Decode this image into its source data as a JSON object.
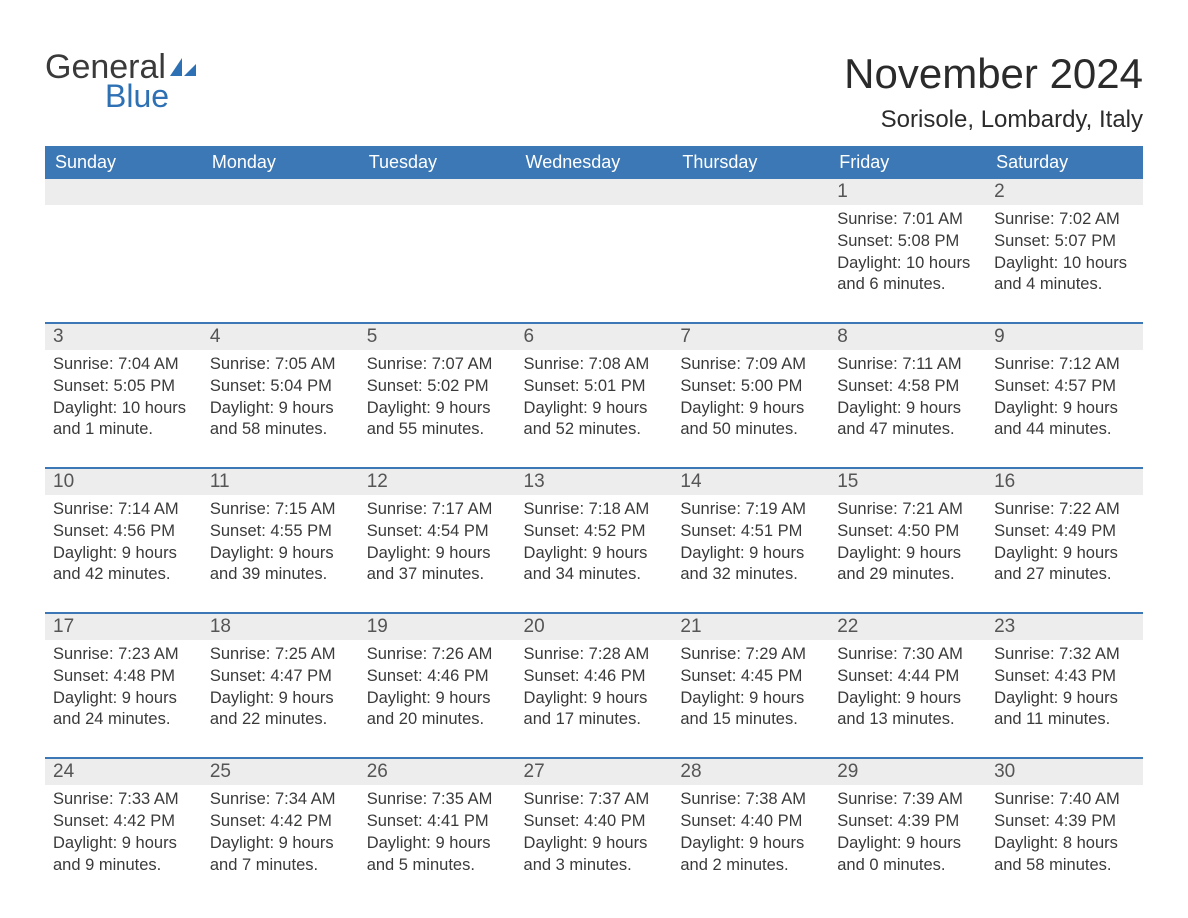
{
  "brand": {
    "general": "General",
    "blue": "Blue",
    "accent": "#2d70b3"
  },
  "title": "November 2024",
  "location": "Sorisole, Lombardy, Italy",
  "colors": {
    "header_bg": "#3b78b5",
    "header_text": "#ffffff",
    "daynum_bg": "#ededed",
    "border": "#3b78b5",
    "text": "#3a3a3a",
    "page_bg": "#ffffff"
  },
  "typography": {
    "title_fontsize": 42,
    "location_fontsize": 24,
    "header_fontsize": 18,
    "daynum_fontsize": 19,
    "body_fontsize": 16.5
  },
  "weekdays": [
    "Sunday",
    "Monday",
    "Tuesday",
    "Wednesday",
    "Thursday",
    "Friday",
    "Saturday"
  ],
  "weeks": [
    [
      null,
      null,
      null,
      null,
      null,
      {
        "n": "1",
        "sunrise": "Sunrise: 7:01 AM",
        "sunset": "Sunset: 5:08 PM",
        "dl1": "Daylight: 10 hours",
        "dl2": "and 6 minutes."
      },
      {
        "n": "2",
        "sunrise": "Sunrise: 7:02 AM",
        "sunset": "Sunset: 5:07 PM",
        "dl1": "Daylight: 10 hours",
        "dl2": "and 4 minutes."
      }
    ],
    [
      {
        "n": "3",
        "sunrise": "Sunrise: 7:04 AM",
        "sunset": "Sunset: 5:05 PM",
        "dl1": "Daylight: 10 hours",
        "dl2": "and 1 minute."
      },
      {
        "n": "4",
        "sunrise": "Sunrise: 7:05 AM",
        "sunset": "Sunset: 5:04 PM",
        "dl1": "Daylight: 9 hours",
        "dl2": "and 58 minutes."
      },
      {
        "n": "5",
        "sunrise": "Sunrise: 7:07 AM",
        "sunset": "Sunset: 5:02 PM",
        "dl1": "Daylight: 9 hours",
        "dl2": "and 55 minutes."
      },
      {
        "n": "6",
        "sunrise": "Sunrise: 7:08 AM",
        "sunset": "Sunset: 5:01 PM",
        "dl1": "Daylight: 9 hours",
        "dl2": "and 52 minutes."
      },
      {
        "n": "7",
        "sunrise": "Sunrise: 7:09 AM",
        "sunset": "Sunset: 5:00 PM",
        "dl1": "Daylight: 9 hours",
        "dl2": "and 50 minutes."
      },
      {
        "n": "8",
        "sunrise": "Sunrise: 7:11 AM",
        "sunset": "Sunset: 4:58 PM",
        "dl1": "Daylight: 9 hours",
        "dl2": "and 47 minutes."
      },
      {
        "n": "9",
        "sunrise": "Sunrise: 7:12 AM",
        "sunset": "Sunset: 4:57 PM",
        "dl1": "Daylight: 9 hours",
        "dl2": "and 44 minutes."
      }
    ],
    [
      {
        "n": "10",
        "sunrise": "Sunrise: 7:14 AM",
        "sunset": "Sunset: 4:56 PM",
        "dl1": "Daylight: 9 hours",
        "dl2": "and 42 minutes."
      },
      {
        "n": "11",
        "sunrise": "Sunrise: 7:15 AM",
        "sunset": "Sunset: 4:55 PM",
        "dl1": "Daylight: 9 hours",
        "dl2": "and 39 minutes."
      },
      {
        "n": "12",
        "sunrise": "Sunrise: 7:17 AM",
        "sunset": "Sunset: 4:54 PM",
        "dl1": "Daylight: 9 hours",
        "dl2": "and 37 minutes."
      },
      {
        "n": "13",
        "sunrise": "Sunrise: 7:18 AM",
        "sunset": "Sunset: 4:52 PM",
        "dl1": "Daylight: 9 hours",
        "dl2": "and 34 minutes."
      },
      {
        "n": "14",
        "sunrise": "Sunrise: 7:19 AM",
        "sunset": "Sunset: 4:51 PM",
        "dl1": "Daylight: 9 hours",
        "dl2": "and 32 minutes."
      },
      {
        "n": "15",
        "sunrise": "Sunrise: 7:21 AM",
        "sunset": "Sunset: 4:50 PM",
        "dl1": "Daylight: 9 hours",
        "dl2": "and 29 minutes."
      },
      {
        "n": "16",
        "sunrise": "Sunrise: 7:22 AM",
        "sunset": "Sunset: 4:49 PM",
        "dl1": "Daylight: 9 hours",
        "dl2": "and 27 minutes."
      }
    ],
    [
      {
        "n": "17",
        "sunrise": "Sunrise: 7:23 AM",
        "sunset": "Sunset: 4:48 PM",
        "dl1": "Daylight: 9 hours",
        "dl2": "and 24 minutes."
      },
      {
        "n": "18",
        "sunrise": "Sunrise: 7:25 AM",
        "sunset": "Sunset: 4:47 PM",
        "dl1": "Daylight: 9 hours",
        "dl2": "and 22 minutes."
      },
      {
        "n": "19",
        "sunrise": "Sunrise: 7:26 AM",
        "sunset": "Sunset: 4:46 PM",
        "dl1": "Daylight: 9 hours",
        "dl2": "and 20 minutes."
      },
      {
        "n": "20",
        "sunrise": "Sunrise: 7:28 AM",
        "sunset": "Sunset: 4:46 PM",
        "dl1": "Daylight: 9 hours",
        "dl2": "and 17 minutes."
      },
      {
        "n": "21",
        "sunrise": "Sunrise: 7:29 AM",
        "sunset": "Sunset: 4:45 PM",
        "dl1": "Daylight: 9 hours",
        "dl2": "and 15 minutes."
      },
      {
        "n": "22",
        "sunrise": "Sunrise: 7:30 AM",
        "sunset": "Sunset: 4:44 PM",
        "dl1": "Daylight: 9 hours",
        "dl2": "and 13 minutes."
      },
      {
        "n": "23",
        "sunrise": "Sunrise: 7:32 AM",
        "sunset": "Sunset: 4:43 PM",
        "dl1": "Daylight: 9 hours",
        "dl2": "and 11 minutes."
      }
    ],
    [
      {
        "n": "24",
        "sunrise": "Sunrise: 7:33 AM",
        "sunset": "Sunset: 4:42 PM",
        "dl1": "Daylight: 9 hours",
        "dl2": "and 9 minutes."
      },
      {
        "n": "25",
        "sunrise": "Sunrise: 7:34 AM",
        "sunset": "Sunset: 4:42 PM",
        "dl1": "Daylight: 9 hours",
        "dl2": "and 7 minutes."
      },
      {
        "n": "26",
        "sunrise": "Sunrise: 7:35 AM",
        "sunset": "Sunset: 4:41 PM",
        "dl1": "Daylight: 9 hours",
        "dl2": "and 5 minutes."
      },
      {
        "n": "27",
        "sunrise": "Sunrise: 7:37 AM",
        "sunset": "Sunset: 4:40 PM",
        "dl1": "Daylight: 9 hours",
        "dl2": "and 3 minutes."
      },
      {
        "n": "28",
        "sunrise": "Sunrise: 7:38 AM",
        "sunset": "Sunset: 4:40 PM",
        "dl1": "Daylight: 9 hours",
        "dl2": "and 2 minutes."
      },
      {
        "n": "29",
        "sunrise": "Sunrise: 7:39 AM",
        "sunset": "Sunset: 4:39 PM",
        "dl1": "Daylight: 9 hours",
        "dl2": "and 0 minutes."
      },
      {
        "n": "30",
        "sunrise": "Sunrise: 7:40 AM",
        "sunset": "Sunset: 4:39 PM",
        "dl1": "Daylight: 8 hours",
        "dl2": "and 58 minutes."
      }
    ]
  ]
}
